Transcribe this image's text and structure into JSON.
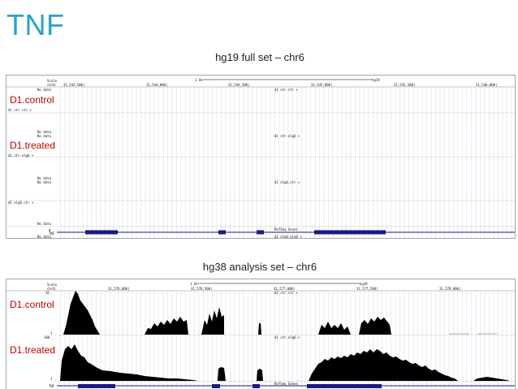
{
  "slide": {
    "title": "TNF"
  },
  "panel1": {
    "caption": "hg19 full set – chr6",
    "scale_label": "Scale",
    "chr_label": "chr6:",
    "scale_bar": "1 kb",
    "assembly": "hg19",
    "positions": [
      "31,543,500|",
      "31,544,000|",
      "31,544,500|",
      "31,545,000|",
      "31,545,500|",
      "31,546,000|"
    ],
    "no_data": "No data",
    "tracks": [
      {
        "sample_label": "D1.control",
        "track_name": "d1 ctr.ctr +",
        "side_name": "d1 ctr.ctr +"
      },
      {
        "sample_label": "D1.treated",
        "track_name": "d1 ctr.elg6 +",
        "side_name": "d1 ctr.elg6 +"
      },
      {
        "sample_label": "",
        "track_name": "d1 elg6.ctr +",
        "side_name": "d1 elg6.ctr +"
      },
      {
        "sample_label": "",
        "track_name": "d1 elg6.elg6 +",
        "side_name": ""
      }
    ],
    "gene_track": "RefSeq Genes",
    "gene_label": "TNF",
    "zero": "0"
  },
  "panel2": {
    "caption": "hg38 analysis set – chr6",
    "scale_label": "Scale",
    "chr_label": "chr6:",
    "scale_bar": "1 kb",
    "assembly": "hg38",
    "positions": [
      "31,576,000|",
      "31,576,500|",
      "31,577,000|",
      "31,577,500|",
      "31,578,000|"
    ],
    "tracks": [
      {
        "sample_label": "D1.control",
        "track_name": "d1 ctr.ctr +",
        "max": "16 _",
        "min": "1 _"
      },
      {
        "sample_label": "D1.treated",
        "track_name": "d1 ctr.elg6 +",
        "max": "100 _",
        "min": "1 _"
      }
    ],
    "gene_track": "RefSeq Genes",
    "gene_label": "TNF"
  },
  "colors": {
    "title": "#29a3c7",
    "label": "#c00000",
    "signal": "#000000",
    "gene": "#1a1a80"
  }
}
